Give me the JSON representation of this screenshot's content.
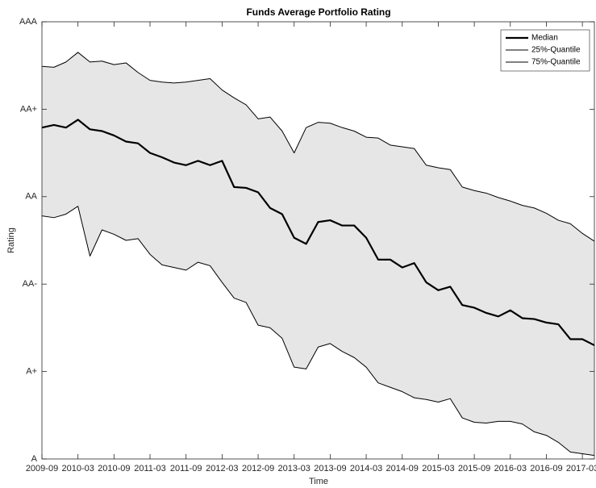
{
  "chart_data": {
    "type": "line",
    "title": "Funds Average Portfolio Rating",
    "xlabel": "Time",
    "ylabel": "Rating",
    "x": [
      "2009-09",
      "2009-11",
      "2010-01",
      "2010-03",
      "2010-05",
      "2010-07",
      "2010-09",
      "2010-11",
      "2011-01",
      "2011-03",
      "2011-05",
      "2011-07",
      "2011-09",
      "2011-11",
      "2012-01",
      "2012-03",
      "2012-05",
      "2012-07",
      "2012-09",
      "2012-11",
      "2013-01",
      "2013-03",
      "2013-05",
      "2013-07",
      "2013-09",
      "2013-11",
      "2014-01",
      "2014-03",
      "2014-05",
      "2014-07",
      "2014-09",
      "2014-11",
      "2015-01",
      "2015-03",
      "2015-05",
      "2015-07",
      "2015-09",
      "2015-11",
      "2016-01",
      "2016-03",
      "2016-05",
      "2016-07",
      "2016-09",
      "2016-11",
      "2017-01",
      "2017-03",
      "2017-05"
    ],
    "series": [
      {
        "name": "Median",
        "color": "#000000",
        "width": 2.2,
        "values": [
          3.79,
          3.82,
          3.79,
          3.88,
          3.77,
          3.75,
          3.7,
          3.63,
          3.61,
          3.5,
          3.45,
          3.39,
          3.36,
          3.41,
          3.36,
          3.41,
          3.11,
          3.1,
          3.05,
          2.87,
          2.8,
          2.53,
          2.46,
          2.71,
          2.73,
          2.67,
          2.67,
          2.53,
          2.28,
          2.28,
          2.19,
          2.24,
          2.02,
          1.93,
          1.97,
          1.76,
          1.73,
          1.67,
          1.63,
          1.7,
          1.61,
          1.6,
          1.56,
          1.54,
          1.37,
          1.37,
          1.3
        ]
      },
      {
        "name": "25%-Quantile",
        "color": "#000000",
        "width": 1,
        "values": [
          4.49,
          4.48,
          4.54,
          4.65,
          4.54,
          4.55,
          4.51,
          4.53,
          4.42,
          4.33,
          4.31,
          4.3,
          4.31,
          4.33,
          4.35,
          4.22,
          4.13,
          4.05,
          3.89,
          3.91,
          3.75,
          3.5,
          3.79,
          3.85,
          3.84,
          3.79,
          3.75,
          3.68,
          3.67,
          3.59,
          3.57,
          3.55,
          3.36,
          3.33,
          3.31,
          3.11,
          3.07,
          3.04,
          2.99,
          2.95,
          2.9,
          2.87,
          2.81,
          2.73,
          2.69,
          2.58,
          2.49
        ]
      },
      {
        "name": "75%-Quantile",
        "color": "#000000",
        "width": 1,
        "values": [
          2.78,
          2.76,
          2.8,
          2.89,
          2.32,
          2.62,
          2.57,
          2.5,
          2.52,
          2.34,
          2.22,
          2.19,
          2.16,
          2.25,
          2.21,
          2.02,
          1.84,
          1.79,
          1.53,
          1.5,
          1.38,
          1.05,
          1.03,
          1.28,
          1.32,
          1.23,
          1.16,
          1.05,
          0.87,
          0.82,
          0.77,
          0.7,
          0.68,
          0.65,
          0.69,
          0.47,
          0.42,
          0.41,
          0.43,
          0.43,
          0.4,
          0.31,
          0.27,
          0.19,
          0.08,
          0.06,
          0.04
        ]
      }
    ],
    "band_color": "#e6e6e6",
    "xlim": [
      "2009-09",
      "2017-05"
    ],
    "xticks": [
      "2009-09",
      "2010-03",
      "2010-09",
      "2011-03",
      "2011-09",
      "2012-03",
      "2012-09",
      "2013-03",
      "2013-09",
      "2014-03",
      "2014-09",
      "2015-03",
      "2015-09",
      "2016-03",
      "2016-09",
      "2017-03"
    ],
    "ylim": [
      0,
      5
    ],
    "yticks": [
      {
        "value": 0,
        "label": "A"
      },
      {
        "value": 1,
        "label": "A+"
      },
      {
        "value": 2,
        "label": "AA-"
      },
      {
        "value": 3,
        "label": "AA"
      },
      {
        "value": 4,
        "label": "AA+"
      },
      {
        "value": 5,
        "label": "AAA"
      }
    ],
    "grid": false,
    "legend": "top-right"
  }
}
